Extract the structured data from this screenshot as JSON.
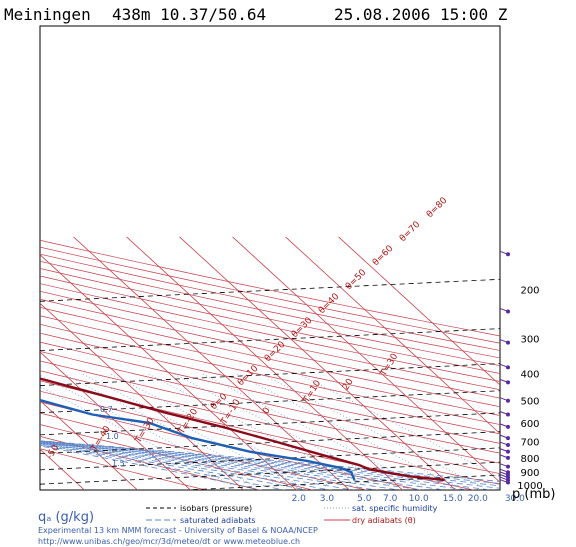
{
  "header": {
    "station": "Meiningen",
    "coords": "438m 10.37/50.64",
    "datetime": "25.08.2006 15:00 Z"
  },
  "legend": {
    "isobars": "isobars (pressure)",
    "saturated": "saturated adiabats",
    "specific_humidity": "sat. specific humidity",
    "dry": "dry adiabats (θ)"
  },
  "footer": {
    "q_label": "qₐ (g/kg)",
    "p_label": "p (mb)",
    "credit1": "Experimental 13 km NMM forecast - University of Basel & NOAA/NCEP",
    "credit2": "http://www.unibas.ch/geo/mcr/3d/meteo/dt   or   www.meteoblue.ch"
  },
  "colors": {
    "temperature": "#8b0a1a",
    "dewpoint": "#1f5fb5",
    "isotherm": "#c8404a",
    "isobar": "#000000",
    "moist": "#5a86c8",
    "wind": "#5a2aa0"
  },
  "chart_data": {
    "type": "line",
    "title": "",
    "xlabel": "qₐ (g/kg)",
    "ylabel": "p (mb)",
    "pressure_ticks": [
      {
        "p": 200,
        "label": "200"
      },
      {
        "p": 300,
        "label": "300"
      },
      {
        "p": 400,
        "label": "400"
      },
      {
        "p": 500,
        "label": "500"
      },
      {
        "p": 600,
        "label": "600"
      },
      {
        "p": 700,
        "label": "700"
      },
      {
        "p": 800,
        "label": "800"
      },
      {
        "p": 900,
        "label": "900"
      },
      {
        "p": 1000,
        "label": "1000"
      }
    ],
    "humidity_ticks": [
      {
        "q": 2.0,
        "label": "2.0"
      },
      {
        "q": 3.0,
        "label": "3.0"
      },
      {
        "q": 5.0,
        "label": "5.0"
      },
      {
        "q": 7.0,
        "label": "7.0"
      },
      {
        "q": 10.0,
        "label": "10.0"
      },
      {
        "q": 15.0,
        "label": "15.0"
      },
      {
        "q": 20.0,
        "label": "20.0"
      },
      {
        "q": 30.0,
        "label": "30.0"
      }
    ],
    "isotherm_labels": [
      {
        "T": -60,
        "label": "T=-60"
      },
      {
        "T": -50,
        "label": "-50"
      },
      {
        "T": -40,
        "label": "T=-40"
      },
      {
        "T": -30,
        "label": "T=-30"
      },
      {
        "T": -20,
        "label": "T=-20"
      },
      {
        "T": -10,
        "label": "T=-10"
      },
      {
        "T": 0,
        "label": "0"
      },
      {
        "T": 10,
        "label": "T=10"
      },
      {
        "T": 20,
        "label": "20"
      },
      {
        "T": 30,
        "label": "T=30"
      }
    ],
    "theta_labels": [
      {
        "label": "θ=80"
      },
      {
        "label": "θ=70"
      },
      {
        "label": "θ=60"
      },
      {
        "label": "θ=50"
      },
      {
        "label": "θ=40"
      },
      {
        "label": "θ=30"
      },
      {
        "label": "θ=20"
      },
      {
        "label": "θ=10"
      },
      {
        "label": "θ=0"
      }
    ],
    "moist_labels": [
      "0.7",
      "1.0",
      "1.5"
    ],
    "series": [
      {
        "name": "temperature",
        "points": [
          {
            "p": 150,
            "T": -58
          },
          {
            "p": 200,
            "T": -54
          },
          {
            "p": 230,
            "T": -53
          },
          {
            "p": 265,
            "T": -49
          },
          {
            "p": 300,
            "T": -44
          },
          {
            "p": 340,
            "T": -42
          },
          {
            "p": 380,
            "T": -42
          },
          {
            "p": 420,
            "T": -35
          },
          {
            "p": 480,
            "T": -27
          },
          {
            "p": 550,
            "T": -19
          },
          {
            "p": 620,
            "T": -11
          },
          {
            "p": 700,
            "T": -4
          },
          {
            "p": 780,
            "T": 2
          },
          {
            "p": 850,
            "T": 7
          },
          {
            "p": 880,
            "T": 8
          },
          {
            "p": 930,
            "T": 14
          },
          {
            "p": 960,
            "T": 20
          }
        ]
      },
      {
        "name": "dewpoint",
        "points": [
          {
            "p": 320,
            "T": -56
          },
          {
            "p": 330,
            "T": -62
          },
          {
            "p": 360,
            "T": -67
          },
          {
            "p": 395,
            "T": -58
          },
          {
            "p": 420,
            "T": -50
          },
          {
            "p": 480,
            "T": -42
          },
          {
            "p": 560,
            "T": -33
          },
          {
            "p": 600,
            "T": -24
          },
          {
            "p": 680,
            "T": -19
          },
          {
            "p": 760,
            "T": -11
          },
          {
            "p": 820,
            "T": -2
          },
          {
            "p": 870,
            "T": 3
          },
          {
            "p": 900,
            "T": 4
          },
          {
            "p": 960,
            "T": 3
          }
        ]
      }
    ],
    "ylim": [
      1000,
      150
    ]
  }
}
